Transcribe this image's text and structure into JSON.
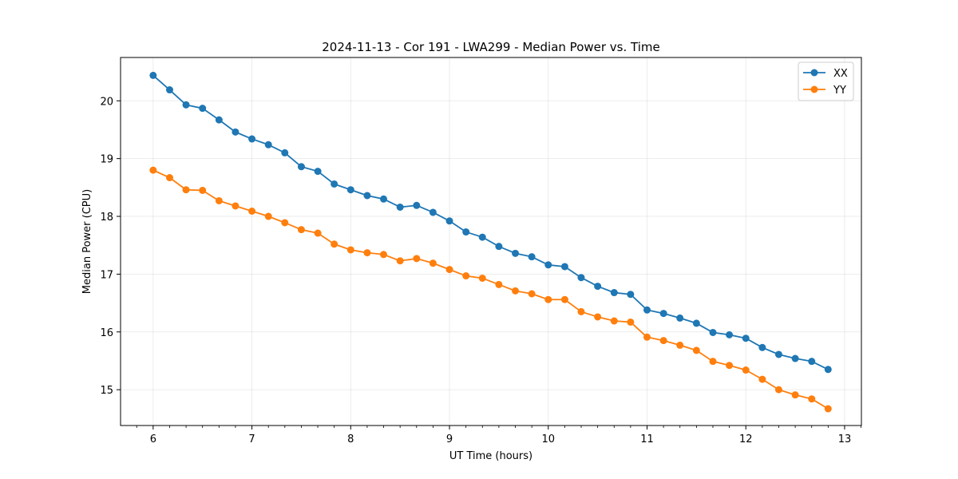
{
  "chart_data": {
    "type": "line",
    "title": "2024-11-13 - Cor 191 - LWA299 - Median Power vs. Time",
    "xlabel": "UT Time (hours)",
    "ylabel": "Median Power (CPU)",
    "xlim": [
      5.67,
      13.17
    ],
    "ylim": [
      14.38,
      20.75
    ],
    "xticks": [
      6,
      7,
      8,
      9,
      10,
      11,
      12,
      13
    ],
    "yticks": [
      15,
      16,
      17,
      18,
      19,
      20
    ],
    "grid": true,
    "legend_position": "top-right",
    "x": [
      6.0,
      6.167,
      6.333,
      6.5,
      6.667,
      6.833,
      7.0,
      7.167,
      7.333,
      7.5,
      7.667,
      7.833,
      8.0,
      8.167,
      8.333,
      8.5,
      8.667,
      8.833,
      9.0,
      9.167,
      9.333,
      9.5,
      9.667,
      9.833,
      10.0,
      10.167,
      10.333,
      10.5,
      10.667,
      10.833,
      11.0,
      11.167,
      11.333,
      11.5,
      11.667,
      11.833,
      12.0,
      12.167,
      12.333,
      12.5,
      12.667,
      12.833
    ],
    "series": [
      {
        "name": "XX",
        "color": "#1f77b4",
        "values": [
          20.44,
          20.19,
          19.93,
          19.87,
          19.67,
          19.46,
          19.34,
          19.24,
          19.1,
          18.86,
          18.78,
          18.56,
          18.46,
          18.36,
          18.3,
          18.16,
          18.19,
          18.07,
          17.92,
          17.73,
          17.64,
          17.48,
          17.36,
          17.3,
          17.16,
          17.13,
          16.94,
          16.79,
          16.68,
          16.65,
          16.38,
          16.32,
          16.24,
          16.15,
          15.99,
          15.95,
          15.89,
          15.73,
          15.61,
          15.54,
          15.49,
          15.35
        ]
      },
      {
        "name": "YY",
        "color": "#ff7f0e",
        "values": [
          18.8,
          18.67,
          18.46,
          18.45,
          18.27,
          18.18,
          18.09,
          18.0,
          17.89,
          17.77,
          17.71,
          17.52,
          17.42,
          17.37,
          17.34,
          17.23,
          17.27,
          17.19,
          17.08,
          16.97,
          16.93,
          16.82,
          16.71,
          16.66,
          16.56,
          16.56,
          16.35,
          16.26,
          16.19,
          16.17,
          15.91,
          15.85,
          15.77,
          15.68,
          15.49,
          15.42,
          15.34,
          15.18,
          15.0,
          14.91,
          14.84,
          14.67
        ]
      }
    ]
  }
}
